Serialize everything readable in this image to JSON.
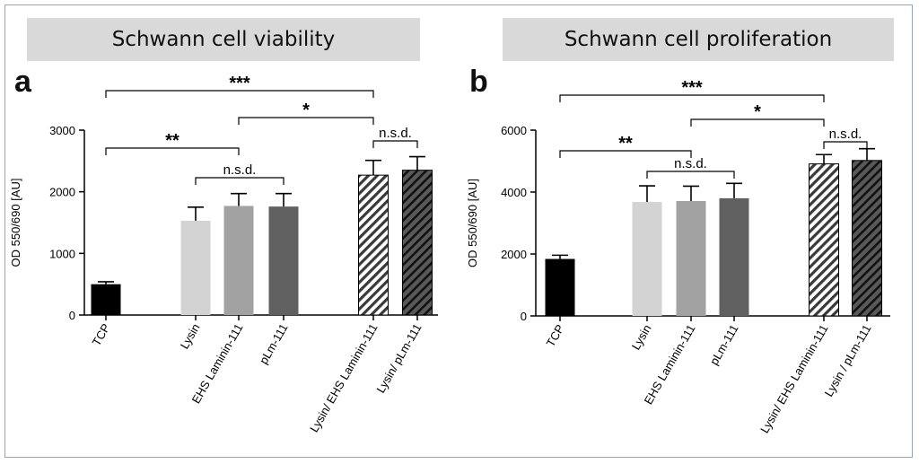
{
  "panels": [
    {
      "letter": "a",
      "title": "Schwann cell viability"
    },
    {
      "letter": "b",
      "title": "Schwann cell proliferation"
    }
  ],
  "colors": {
    "tcp": "#000000",
    "lysin": "#d3d3d3",
    "ehs": "#a2a2a2",
    "plm": "#606060",
    "hatch_light_bg": "#ffffff",
    "hatch_dark_bg": "#595959"
  },
  "chart_data": [
    {
      "type": "bar",
      "title": "Schwann cell viability",
      "ylabel": "OD 550/690 [AU]",
      "ylim": [
        0,
        3000
      ],
      "yticks": [
        0,
        1000,
        2000,
        3000
      ],
      "categories": [
        "TCP",
        "Lysin",
        "EHS Laminin-111",
        "pLm-111",
        "Lysin/ EHS Laminin-111",
        "Lysin/ pLm-111"
      ],
      "values": [
        500,
        1530,
        1770,
        1760,
        2270,
        2350
      ],
      "errors": [
        40,
        220,
        200,
        210,
        240,
        220
      ],
      "significance": [
        {
          "from": 0,
          "to": 4,
          "label": "***"
        },
        {
          "from": 2,
          "to": 4,
          "label": "*"
        },
        {
          "from": 0,
          "to": 2,
          "label": "**"
        },
        {
          "from": 4,
          "to": 5,
          "label": "n.s.d."
        },
        {
          "from": 1,
          "to": 3,
          "label": "n.s.d."
        }
      ]
    },
    {
      "type": "bar",
      "title": "Schwann cell proliferation",
      "ylabel": "OD 550/690 [AU]",
      "ylim": [
        0,
        6000
      ],
      "yticks": [
        0,
        2000,
        4000,
        6000
      ],
      "categories": [
        "TCP",
        "Lysin",
        "EHS Laminin-111",
        "pLm-111",
        "Lysin/ EHS Laminin-111",
        "Lysin / pLm-111"
      ],
      "values": [
        1840,
        3680,
        3710,
        3800,
        4910,
        5020
      ],
      "errors": [
        120,
        520,
        480,
        480,
        300,
        380
      ],
      "significance": [
        {
          "from": 0,
          "to": 4,
          "label": "***"
        },
        {
          "from": 2,
          "to": 4,
          "label": "*"
        },
        {
          "from": 0,
          "to": 2,
          "label": "**"
        },
        {
          "from": 4,
          "to": 5,
          "label": "n.s.d."
        },
        {
          "from": 1,
          "to": 3,
          "label": "n.s.d."
        }
      ]
    }
  ]
}
